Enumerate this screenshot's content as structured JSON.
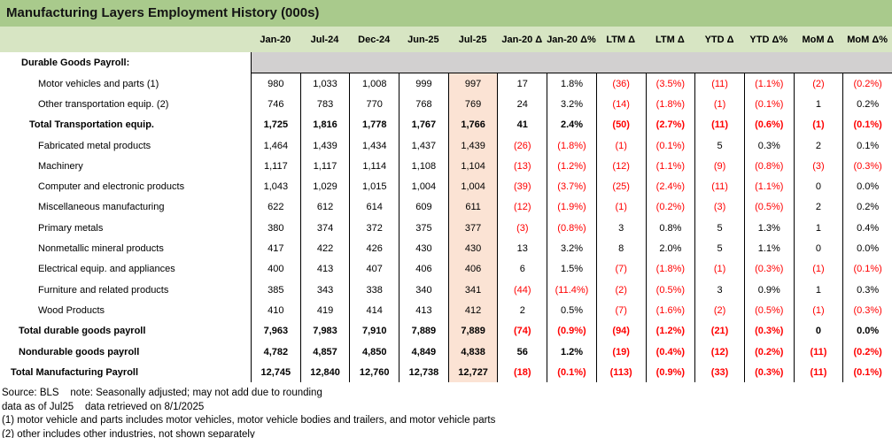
{
  "title": "Manufacturing Layers Employment History (000s)",
  "colors": {
    "title_bg": "#a9ca8c",
    "header_bg": "#d7e5c3",
    "band_bg": "#d2d0d0",
    "hl_bg": "#fbe3d4",
    "neg": "#ff0000"
  },
  "table": {
    "columns": [
      "Jan-20",
      "Jul-24",
      "Dec-24",
      "Jun-25",
      "Jul-25",
      "Jan-20 Δ",
      "Jan-20 Δ%",
      "LTM Δ",
      "LTM Δ",
      "YTD Δ",
      "YTD Δ%",
      "MoM Δ",
      "MoM Δ%"
    ],
    "highlight_column_index": 4,
    "section_header": "Durable Goods Payroll:",
    "rows": [
      {
        "label": "Motor vehicles and parts (1)",
        "level": "item",
        "bold": false,
        "values": [
          "980",
          "1,033",
          "1,008",
          "999",
          "997",
          "17",
          "1.8%",
          "(36)",
          "(3.5%)",
          "(11)",
          "(1.1%)",
          "(2)",
          "(0.2%)"
        ]
      },
      {
        "label": "Other transportation equip. (2)",
        "level": "item",
        "bold": false,
        "values": [
          "746",
          "783",
          "770",
          "768",
          "769",
          "24",
          "3.2%",
          "(14)",
          "(1.8%)",
          "(1)",
          "(0.1%)",
          "1",
          "0.2%"
        ]
      },
      {
        "label": "Total Transportation equip.",
        "level": "subtotal",
        "bold": true,
        "values": [
          "1,725",
          "1,816",
          "1,778",
          "1,767",
          "1,766",
          "41",
          "2.4%",
          "(50)",
          "(2.7%)",
          "(11)",
          "(0.6%)",
          "(1)",
          "(0.1%)"
        ]
      },
      {
        "label": "Fabricated metal products",
        "level": "item",
        "bold": false,
        "values": [
          "1,464",
          "1,439",
          "1,434",
          "1,437",
          "1,439",
          "(26)",
          "(1.8%)",
          "(1)",
          "(0.1%)",
          "5",
          "0.3%",
          "2",
          "0.1%"
        ]
      },
      {
        "label": "Machinery",
        "level": "item",
        "bold": false,
        "values": [
          "1,117",
          "1,117",
          "1,114",
          "1,108",
          "1,104",
          "(13)",
          "(1.2%)",
          "(12)",
          "(1.1%)",
          "(9)",
          "(0.8%)",
          "(3)",
          "(0.3%)"
        ]
      },
      {
        "label": "Computer and electronic products",
        "level": "item",
        "bold": false,
        "values": [
          "1,043",
          "1,029",
          "1,015",
          "1,004",
          "1,004",
          "(39)",
          "(3.7%)",
          "(25)",
          "(2.4%)",
          "(11)",
          "(1.1%)",
          "0",
          "0.0%"
        ]
      },
      {
        "label": "Miscellaneous manufacturing",
        "level": "item",
        "bold": false,
        "values": [
          "622",
          "612",
          "614",
          "609",
          "611",
          "(12)",
          "(1.9%)",
          "(1)",
          "(0.2%)",
          "(3)",
          "(0.5%)",
          "2",
          "0.2%"
        ]
      },
      {
        "label": "Primary metals",
        "level": "item",
        "bold": false,
        "values": [
          "380",
          "374",
          "372",
          "375",
          "377",
          "(3)",
          "(0.8%)",
          "3",
          "0.8%",
          "5",
          "1.3%",
          "1",
          "0.4%"
        ]
      },
      {
        "label": "Nonmetallic mineral products",
        "level": "item",
        "bold": false,
        "values": [
          "417",
          "422",
          "426",
          "430",
          "430",
          "13",
          "3.2%",
          "8",
          "2.0%",
          "5",
          "1.1%",
          "0",
          "0.0%"
        ]
      },
      {
        "label": "Electrical equip. and appliances",
        "level": "item",
        "bold": false,
        "values": [
          "400",
          "413",
          "407",
          "406",
          "406",
          "6",
          "1.5%",
          "(7)",
          "(1.8%)",
          "(1)",
          "(0.3%)",
          "(1)",
          "(0.1%)"
        ]
      },
      {
        "label": "Furniture and related products",
        "level": "item",
        "bold": false,
        "values": [
          "385",
          "343",
          "338",
          "340",
          "341",
          "(44)",
          "(11.4%)",
          "(2)",
          "(0.5%)",
          "3",
          "0.9%",
          "1",
          "0.3%"
        ]
      },
      {
        "label": "Wood Products",
        "level": "item",
        "bold": false,
        "values": [
          "410",
          "419",
          "414",
          "413",
          "412",
          "2",
          "0.5%",
          "(7)",
          "(1.6%)",
          "(2)",
          "(0.5%)",
          "(1)",
          "(0.3%)"
        ]
      },
      {
        "label": "Total durable goods payroll",
        "level": "total",
        "bold": true,
        "values": [
          "7,963",
          "7,983",
          "7,910",
          "7,889",
          "7,889",
          "(74)",
          "(0.9%)",
          "(94)",
          "(1.2%)",
          "(21)",
          "(0.3%)",
          "0",
          "0.0%"
        ]
      },
      {
        "label": "Nondurable goods payroll",
        "level": "total",
        "bold": true,
        "values": [
          "4,782",
          "4,857",
          "4,850",
          "4,849",
          "4,838",
          "56",
          "1.2%",
          "(19)",
          "(0.4%)",
          "(12)",
          "(0.2%)",
          "(11)",
          "(0.2%)"
        ]
      },
      {
        "label": "Total Manufacturing Payroll",
        "level": "grand",
        "bold": true,
        "values": [
          "12,745",
          "12,840",
          "12,760",
          "12,738",
          "12,727",
          "(18)",
          "(0.1%)",
          "(113)",
          "(0.9%)",
          "(33)",
          "(0.3%)",
          "(11)",
          "(0.1%)"
        ]
      }
    ]
  },
  "footer": {
    "lines": [
      "Source: BLS    note: Seasonally adjusted; may not add due to rounding",
      "data as of Jul25    data retrieved on 8/1/2025",
      "(1) motor vehicle and parts includes motor vehicles, motor vehicle bodies and trailers, and motor vehicle parts",
      "(2) other includes other industries, not shown separately"
    ]
  }
}
